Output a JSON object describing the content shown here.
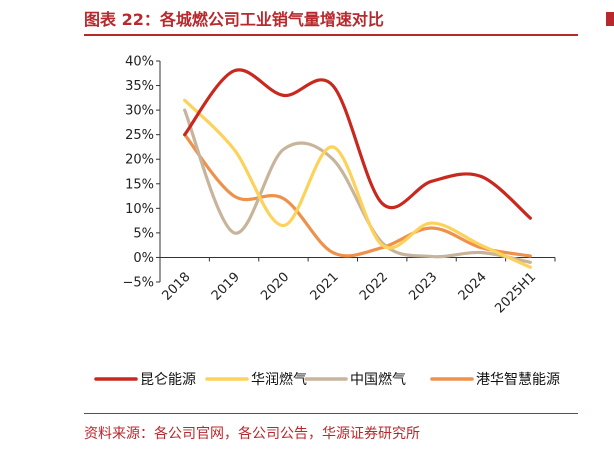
{
  "header": {
    "title": "图表 22：各城燃公司工业销气量增速对比"
  },
  "footer": {
    "source": "资料来源：各公司官网，各公司公告，华源证券研究所"
  },
  "chart_data": {
    "type": "line",
    "title": "图表 22：各城燃公司工业销气量增速对比",
    "categories": [
      "2018",
      "2019",
      "2020",
      "2021",
      "2022",
      "2023",
      "2024",
      "2025H1"
    ],
    "y_ticks": [
      "40%",
      "35%",
      "30%",
      "25%",
      "20%",
      "15%",
      "10%",
      "5%",
      "0%",
      "−5%"
    ],
    "ylim": [
      -5,
      40
    ],
    "y_unit": "%",
    "legend_position": "bottom",
    "grid": false,
    "series": [
      {
        "name": "昆仑能源",
        "color": "#c8281e",
        "values": [
          25,
          38,
          33,
          35,
          11,
          15.5,
          16.5,
          8
        ]
      },
      {
        "name": "华润燃气",
        "color": "#fdd25a",
        "values": [
          32,
          22,
          6.5,
          22.5,
          2.5,
          7,
          2.5,
          -2
        ]
      },
      {
        "name": "中国燃气",
        "color": "#c8b49a",
        "values": [
          30,
          5,
          22,
          20,
          3,
          0.2,
          1,
          -1
        ]
      },
      {
        "name": "港华智慧能源",
        "color": "#f0914b",
        "values": [
          25,
          12.5,
          12,
          1,
          2,
          6,
          2,
          0.3
        ]
      }
    ]
  }
}
